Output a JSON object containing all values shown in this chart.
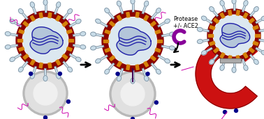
{
  "background_color": "#ffffff",
  "label_protease": "Protease",
  "label_ace2": "+/- ACE2",
  "dark_red": "#8B0000",
  "bright_red": "#cc1111",
  "orange": "#d4820a",
  "spike_color": "#c8dce8",
  "spike_outline": "#607080",
  "rna_color": "#2222aa",
  "rna_fill": "#9ab0cc",
  "cell_gray": "#b8b8b8",
  "cell_gray_light": "#e0e0e0",
  "cell_white": "#f0f0f0",
  "blue_dot": "#00008a",
  "magenta": "#cc00aa",
  "purple_ace2": "#880099",
  "connector_color": "#440055",
  "white": "#ffffff"
}
